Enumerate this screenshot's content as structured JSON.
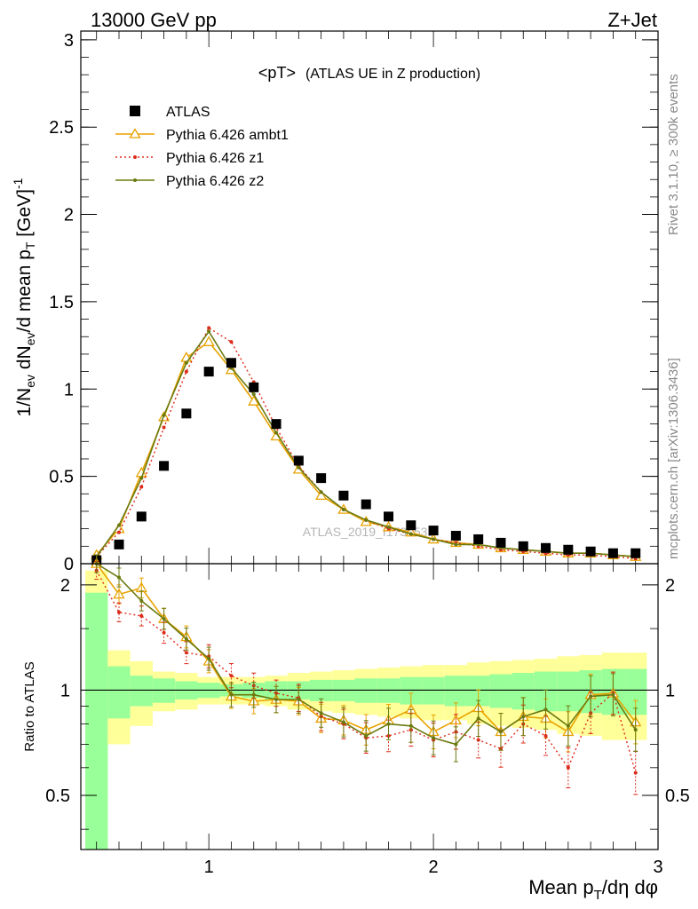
{
  "header": {
    "left": "13000 GeV pp",
    "right": "Z+Jet"
  },
  "side_labels": {
    "top": "Rivet 3.1.10, ≥ 300k events",
    "bottom": "mcplots.cern.ch [arXiv:1306.3436]"
  },
  "watermark": "ATLAS_2019_I1736531",
  "chart_data": [
    {
      "type": "scatter",
      "panel": "main",
      "title": "<pT>",
      "subtitle": "(ATLAS UE in Z production)",
      "ylabel": "1/N_ev dN_ev/d mean p_T [GeV]^-1",
      "xlim": [
        0.43,
        3.0
      ],
      "ylim": [
        0,
        3.05
      ],
      "x_ticks": [
        1,
        2,
        3
      ],
      "y_ticks": [
        0,
        0.5,
        1,
        1.5,
        2,
        2.5,
        3
      ],
      "y_tick_labels": [
        "0",
        "0.5",
        "1",
        "1.5",
        "2",
        "2.5",
        "3"
      ],
      "legend_position": "top-left",
      "x": [
        0.5,
        0.6,
        0.7,
        0.8,
        0.9,
        1.0,
        1.1,
        1.2,
        1.3,
        1.4,
        1.5,
        1.6,
        1.7,
        1.8,
        1.9,
        2.0,
        2.1,
        2.2,
        2.3,
        2.4,
        2.5,
        2.6,
        2.7,
        2.8,
        2.9
      ],
      "series": [
        {
          "name": "ATLAS",
          "color": "#000000",
          "style": "marker-square",
          "values": [
            0.02,
            0.11,
            0.27,
            0.56,
            0.86,
            1.1,
            1.15,
            1.01,
            0.8,
            0.59,
            0.49,
            0.39,
            0.34,
            0.27,
            0.22,
            0.19,
            0.16,
            0.14,
            0.12,
            0.1,
            0.09,
            0.08,
            0.07,
            0.06,
            0.06
          ]
        },
        {
          "name": "Pythia 6.426 ambt1",
          "color": "#e8a200",
          "style": "line-triangle",
          "values": [
            0.05,
            0.2,
            0.52,
            0.84,
            1.18,
            1.27,
            1.11,
            0.93,
            0.73,
            0.54,
            0.39,
            0.31,
            0.24,
            0.21,
            0.18,
            0.14,
            0.12,
            0.11,
            0.09,
            0.08,
            0.07,
            0.06,
            0.06,
            0.05,
            0.04
          ]
        },
        {
          "name": "Pythia 6.426 z1",
          "color": "#dd2a1a",
          "style": "dotted",
          "values": [
            0.04,
            0.18,
            0.44,
            0.78,
            1.1,
            1.35,
            1.27,
            1.04,
            0.78,
            0.56,
            0.41,
            0.31,
            0.25,
            0.2,
            0.17,
            0.14,
            0.12,
            0.1,
            0.08,
            0.07,
            0.06,
            0.05,
            0.05,
            0.04,
            0.03
          ]
        },
        {
          "name": "Pythia 6.426 z2",
          "color": "#6b7a10",
          "style": "line-dot",
          "values": [
            0.04,
            0.22,
            0.49,
            0.85,
            1.15,
            1.33,
            1.12,
            0.97,
            0.75,
            0.55,
            0.41,
            0.31,
            0.25,
            0.21,
            0.17,
            0.14,
            0.11,
            0.11,
            0.09,
            0.08,
            0.07,
            0.06,
            0.06,
            0.05,
            0.04
          ]
        }
      ]
    },
    {
      "type": "line",
      "panel": "ratio",
      "ylabel": "Ratio to ATLAS",
      "xlabel": "Mean p_T/dη dφ",
      "xlim": [
        0.43,
        3.0
      ],
      "ylim": [
        0.35,
        2.3
      ],
      "x_ticks": [
        1,
        2,
        3
      ],
      "x_tick_labels": [
        "1",
        "2",
        "3"
      ],
      "y_ticks": [
        0.5,
        1,
        2
      ],
      "y_tick_labels": [
        "0.5",
        "1",
        "2"
      ],
      "x": [
        0.5,
        0.6,
        0.7,
        0.8,
        0.9,
        1.0,
        1.1,
        1.2,
        1.3,
        1.4,
        1.5,
        1.6,
        1.7,
        1.8,
        1.9,
        2.0,
        2.1,
        2.2,
        2.3,
        2.4,
        2.5,
        2.6,
        2.7,
        2.8,
        2.9
      ],
      "bin_edges": [
        0.45,
        0.55,
        0.65,
        0.75,
        0.85,
        0.95,
        1.05,
        1.15,
        1.25,
        1.35,
        1.45,
        1.55,
        1.65,
        1.75,
        1.85,
        1.95,
        2.05,
        2.15,
        2.25,
        2.35,
        2.45,
        2.55,
        2.65,
        2.75,
        2.85,
        2.95
      ],
      "band_stat": [
        0.9,
        0.17,
        0.1,
        0.08,
        0.06,
        0.05,
        0.04,
        0.05,
        0.06,
        0.06,
        0.07,
        0.07,
        0.08,
        0.08,
        0.09,
        0.09,
        0.1,
        0.1,
        0.11,
        0.12,
        0.13,
        0.13,
        0.14,
        0.15,
        0.15
      ],
      "band_total": [
        1.2,
        0.3,
        0.21,
        0.13,
        0.12,
        0.09,
        0.09,
        0.09,
        0.1,
        0.12,
        0.13,
        0.14,
        0.15,
        0.16,
        0.17,
        0.18,
        0.18,
        0.2,
        0.21,
        0.22,
        0.23,
        0.25,
        0.26,
        0.28,
        0.28
      ],
      "series": [
        {
          "name": "Pythia 6.426 ambt1",
          "color": "#e8a200",
          "style": "line-triangle",
          "values": [
            2.4,
            1.88,
            1.96,
            1.6,
            1.42,
            1.21,
            0.96,
            0.93,
            0.94,
            0.93,
            0.83,
            0.82,
            0.77,
            0.82,
            0.88,
            0.76,
            0.82,
            0.89,
            0.76,
            0.84,
            0.83,
            0.76,
            0.97,
            0.98,
            0.81
          ]
        },
        {
          "name": "Pythia 6.426 z1",
          "color": "#dd2a1a",
          "style": "dotted",
          "values": [
            2.2,
            1.67,
            1.63,
            1.46,
            1.28,
            1.25,
            1.1,
            1.03,
            0.98,
            0.95,
            0.84,
            0.8,
            0.73,
            0.74,
            0.77,
            0.72,
            0.76,
            0.72,
            0.68,
            0.8,
            0.74,
            0.6,
            0.86,
            0.98,
            0.58
          ]
        },
        {
          "name": "Pythia 6.426 z2",
          "color": "#6b7a10",
          "style": "line-dot",
          "values": [
            2.3,
            2.1,
            1.8,
            1.6,
            1.4,
            1.23,
            0.97,
            0.97,
            0.94,
            0.94,
            0.86,
            0.81,
            0.74,
            0.8,
            0.79,
            0.73,
            0.7,
            0.83,
            0.76,
            0.84,
            0.88,
            0.79,
            0.96,
            0.97,
            0.77
          ]
        }
      ]
    }
  ]
}
